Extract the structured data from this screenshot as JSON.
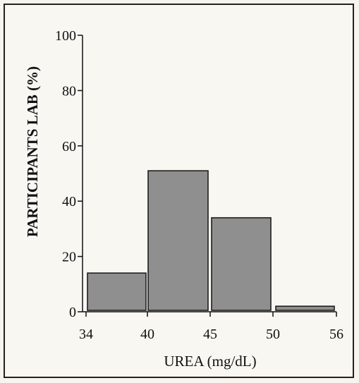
{
  "chart_data": {
    "type": "bar",
    "title": "",
    "xlabel": "UREA   (mg/dL)",
    "ylabel": "PARTICIPANTS LAB (%)",
    "ylim": [
      0,
      100
    ],
    "y_ticks": [
      "0",
      "20",
      "40",
      "60",
      "80",
      "100"
    ],
    "x_ticks": [
      "34",
      "40",
      "45",
      "50",
      "56"
    ],
    "bins": [
      {
        "from": 34,
        "to": 40,
        "value": 14
      },
      {
        "from": 40,
        "to": 45,
        "value": 51
      },
      {
        "from": 45,
        "to": 50,
        "value": 34
      },
      {
        "from": 50,
        "to": 56,
        "value": 2
      }
    ],
    "grid": false,
    "bar_color": "#8f8f8f",
    "bar_edge_color": "#1e1e1e"
  }
}
